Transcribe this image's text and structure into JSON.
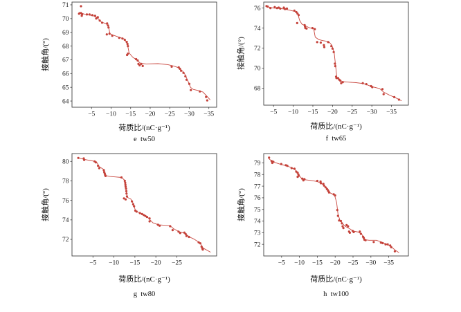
{
  "page": {
    "background": "#ffffff"
  },
  "style": {
    "point_color": "#c4423a",
    "line_color": "#c8463e",
    "axis_color": "#3f3f3f",
    "text_color": "#1c1c1c"
  },
  "chart_data": [
    {
      "id": "e-tw50",
      "type": "scatter",
      "caption": "e  tw50",
      "xlabel": "荷质比/(nC·g⁻¹)",
      "ylabel": "接触角/(°)",
      "xlim": [
        0,
        -37
      ],
      "ylim": [
        63.55,
        71.2
      ],
      "xticks": [
        -5,
        -10,
        -15,
        -20,
        -25,
        -30,
        -35
      ],
      "yticks": [
        64,
        65,
        66,
        67,
        68,
        69,
        70,
        71
      ],
      "points": [
        [
          -2.3,
          70.9
        ],
        [
          -1.8,
          70.35
        ],
        [
          -2.3,
          70.4
        ],
        [
          -2.6,
          70.3
        ],
        [
          -2.5,
          70.2
        ],
        [
          -3.8,
          70.3
        ],
        [
          -4.5,
          70.3
        ],
        [
          -5.2,
          70.25
        ],
        [
          -5.9,
          70.2
        ],
        [
          -6.2,
          70.0
        ],
        [
          -6.6,
          70.1
        ],
        [
          -7.1,
          69.85
        ],
        [
          -7.7,
          69.7
        ],
        [
          -9.0,
          69.65
        ],
        [
          -9.2,
          69.5
        ],
        [
          -9.35,
          69.35
        ],
        [
          -8.9,
          68.85
        ],
        [
          -9.6,
          68.9
        ],
        [
          -10.3,
          68.75
        ],
        [
          -12.1,
          68.6
        ],
        [
          -12.9,
          68.55
        ],
        [
          -13.5,
          68.45
        ],
        [
          -14.0,
          68.3
        ],
        [
          -14.2,
          68.15
        ],
        [
          -14.3,
          68.0
        ],
        [
          -14.1,
          67.35
        ],
        [
          -14.3,
          67.45
        ],
        [
          -16.4,
          67.05
        ],
        [
          -16.8,
          66.95
        ],
        [
          -17.0,
          66.7
        ],
        [
          -17.3,
          66.6
        ],
        [
          -17.7,
          66.7
        ],
        [
          -18.1,
          66.55
        ],
        [
          -25.5,
          66.5
        ],
        [
          -27.3,
          66.45
        ],
        [
          -27.6,
          66.35
        ],
        [
          -27.9,
          66.2
        ],
        [
          -28.5,
          66.05
        ],
        [
          -29.0,
          65.8
        ],
        [
          -29.3,
          65.55
        ],
        [
          -30.0,
          65.25
        ],
        [
          -30.4,
          64.8
        ],
        [
          -32.7,
          64.7
        ],
        [
          -34.3,
          64.3
        ],
        [
          -34.6,
          64.05
        ]
      ],
      "line": [
        [
          -1.8,
          70.45
        ],
        [
          -3.5,
          70.3
        ],
        [
          -5.5,
          70.2
        ],
        [
          -6.5,
          70.05
        ],
        [
          -7.5,
          69.75
        ],
        [
          -8.5,
          69.65
        ],
        [
          -9.3,
          69.5
        ],
        [
          -9.7,
          68.9
        ],
        [
          -10.5,
          68.8
        ],
        [
          -12.0,
          68.65
        ],
        [
          -13.5,
          68.5
        ],
        [
          -14.2,
          68.1
        ],
        [
          -14.6,
          67.5
        ],
        [
          -15.5,
          67.2
        ],
        [
          -16.5,
          67.0
        ],
        [
          -17.5,
          66.75
        ],
        [
          -19.0,
          66.7
        ],
        [
          -22.0,
          66.72
        ],
        [
          -24.5,
          66.65
        ],
        [
          -26.0,
          66.55
        ],
        [
          -27.5,
          66.4
        ],
        [
          -28.7,
          66.05
        ],
        [
          -29.6,
          65.5
        ],
        [
          -30.3,
          65.0
        ],
        [
          -31.0,
          64.85
        ],
        [
          -32.5,
          64.75
        ],
        [
          -33.5,
          64.65
        ],
        [
          -34.5,
          64.35
        ],
        [
          -35.3,
          64.1
        ]
      ]
    },
    {
      "id": "f-tw65",
      "type": "scatter",
      "caption": "f  tw65",
      "xlabel": "荷质比/(nC·g⁻¹)",
      "ylabel": "接触角/(°)",
      "xlim": [
        -2.5,
        -39.3
      ],
      "ylim": [
        66.3,
        76.6
      ],
      "xticks": [
        -5,
        -10,
        -15,
        -20,
        -25,
        -30,
        -35
      ],
      "yticks": [
        68,
        70,
        72,
        74,
        76
      ],
      "points": [
        [
          -3.2,
          76.2
        ],
        [
          -3.5,
          76.15
        ],
        [
          -4.2,
          76.0
        ],
        [
          -5.3,
          76.1
        ],
        [
          -5.9,
          76.0
        ],
        [
          -6.3,
          76.05
        ],
        [
          -6.7,
          75.95
        ],
        [
          -7.6,
          76.05
        ],
        [
          -7.9,
          75.9
        ],
        [
          -8.4,
          75.95
        ],
        [
          -10.3,
          75.75
        ],
        [
          -10.8,
          75.6
        ],
        [
          -11.1,
          75.45
        ],
        [
          -11.4,
          75.3
        ],
        [
          -11.0,
          74.5
        ],
        [
          -12.9,
          74.3
        ],
        [
          -13.0,
          74.15
        ],
        [
          -13.1,
          74.0
        ],
        [
          -13.4,
          73.95
        ],
        [
          -14.9,
          74.0
        ],
        [
          -15.5,
          73.9
        ],
        [
          -16.1,
          72.6
        ],
        [
          -17.0,
          72.55
        ],
        [
          -17.8,
          72.3
        ],
        [
          -17.9,
          72.1
        ],
        [
          -18.9,
          72.6
        ],
        [
          -19.7,
          72.2
        ],
        [
          -20.0,
          71.95
        ],
        [
          -20.3,
          71.6
        ],
        [
          -20.6,
          70.45
        ],
        [
          -20.7,
          70.2
        ],
        [
          -20.9,
          69.15
        ],
        [
          -21.0,
          69.0
        ],
        [
          -21.4,
          69.0
        ],
        [
          -21.7,
          68.85
        ],
        [
          -22.0,
          68.75
        ],
        [
          -22.2,
          68.5
        ],
        [
          -22.6,
          68.6
        ],
        [
          -27.7,
          68.5
        ],
        [
          -28.6,
          68.4
        ],
        [
          -29.8,
          68.2
        ],
        [
          -30.1,
          68.1
        ],
        [
          -32.7,
          67.9
        ],
        [
          -33.0,
          67.4
        ],
        [
          -35.7,
          67.1
        ],
        [
          -36.9,
          66.85
        ]
      ],
      "line": [
        [
          -3.2,
          76.15
        ],
        [
          -5.0,
          76.0
        ],
        [
          -7.0,
          75.95
        ],
        [
          -9.0,
          75.8
        ],
        [
          -10.5,
          75.65
        ],
        [
          -11.2,
          75.4
        ],
        [
          -11.6,
          74.8
        ],
        [
          -12.2,
          74.4
        ],
        [
          -13.0,
          74.25
        ],
        [
          -14.0,
          74.05
        ],
        [
          -15.2,
          73.95
        ],
        [
          -15.6,
          73.1
        ],
        [
          -16.5,
          72.85
        ],
        [
          -17.5,
          72.75
        ],
        [
          -19.0,
          72.65
        ],
        [
          -19.8,
          72.3
        ],
        [
          -20.4,
          71.6
        ],
        [
          -20.8,
          70.2
        ],
        [
          -21.1,
          69.1
        ],
        [
          -21.5,
          68.9
        ],
        [
          -22.5,
          68.65
        ],
        [
          -24.0,
          68.6
        ],
        [
          -26.0,
          68.55
        ],
        [
          -28.0,
          68.45
        ],
        [
          -30.0,
          68.15
        ],
        [
          -32.0,
          67.95
        ],
        [
          -33.0,
          67.6
        ],
        [
          -34.5,
          67.3
        ],
        [
          -36.0,
          67.05
        ],
        [
          -37.5,
          66.75
        ]
      ]
    },
    {
      "id": "g-tw80",
      "type": "scatter",
      "caption": "g  tw80",
      "xlabel": "荷质比/(nC·g⁻¹)",
      "ylabel": "接触角/(°)",
      "xlim": [
        0,
        -34.5
      ],
      "ylim": [
        70.3,
        80.8
      ],
      "xticks": [
        -5,
        -10,
        -15,
        -20,
        -25
      ],
      "yticks": [
        72,
        74,
        76,
        78,
        80
      ],
      "points": [
        [
          -1.5,
          80.35
        ],
        [
          -2.8,
          80.3
        ],
        [
          -2.9,
          80.15
        ],
        [
          -5.4,
          80.0
        ],
        [
          -5.7,
          79.9
        ],
        [
          -6.2,
          79.55
        ],
        [
          -6.5,
          79.3
        ],
        [
          -7.6,
          79.1
        ],
        [
          -7.7,
          78.9
        ],
        [
          -7.8,
          78.75
        ],
        [
          -7.9,
          78.6
        ],
        [
          -8.0,
          78.5
        ],
        [
          -11.8,
          78.35
        ],
        [
          -12.6,
          78.0
        ],
        [
          -12.7,
          77.8
        ],
        [
          -12.75,
          77.6
        ],
        [
          -12.8,
          77.4
        ],
        [
          -12.9,
          77.2
        ],
        [
          -12.95,
          76.95
        ],
        [
          -13.0,
          76.7
        ],
        [
          -13.1,
          76.4
        ],
        [
          -12.4,
          76.2
        ],
        [
          -12.8,
          76.1
        ],
        [
          -14.3,
          75.9
        ],
        [
          -14.6,
          75.6
        ],
        [
          -14.8,
          75.4
        ],
        [
          -15.1,
          74.95
        ],
        [
          -15.4,
          74.85
        ],
        [
          -16.2,
          74.7
        ],
        [
          -16.7,
          74.6
        ],
        [
          -17.1,
          74.5
        ],
        [
          -17.5,
          74.4
        ],
        [
          -17.9,
          74.3
        ],
        [
          -18.5,
          74.15
        ],
        [
          -18.5,
          73.85
        ],
        [
          -20.5,
          73.5
        ],
        [
          -20.9,
          73.4
        ],
        [
          -23.4,
          73.35
        ],
        [
          -24.0,
          72.95
        ],
        [
          -25.4,
          72.8
        ],
        [
          -25.8,
          72.65
        ],
        [
          -26.8,
          72.7
        ],
        [
          -27.1,
          72.55
        ],
        [
          -27.3,
          72.35
        ],
        [
          -27.9,
          72.25
        ],
        [
          -30.2,
          71.7
        ],
        [
          -30.6,
          71.6
        ],
        [
          -30.9,
          71.25
        ],
        [
          -31.1,
          71.05
        ],
        [
          -31.2,
          70.95
        ]
      ],
      "line": [
        [
          -1.5,
          80.35
        ],
        [
          -3.0,
          80.2
        ],
        [
          -5.5,
          80.0
        ],
        [
          -6.0,
          79.85
        ],
        [
          -6.5,
          79.45
        ],
        [
          -7.5,
          79.2
        ],
        [
          -8.0,
          78.55
        ],
        [
          -9.0,
          78.45
        ],
        [
          -10.5,
          78.4
        ],
        [
          -11.8,
          78.35
        ],
        [
          -12.5,
          78.1
        ],
        [
          -12.8,
          77.4
        ],
        [
          -13.0,
          76.7
        ],
        [
          -13.2,
          76.3
        ],
        [
          -14.0,
          76.15
        ],
        [
          -14.6,
          75.7
        ],
        [
          -15.1,
          75.0
        ],
        [
          -15.5,
          74.85
        ],
        [
          -17.0,
          74.55
        ],
        [
          -18.0,
          74.3
        ],
        [
          -18.6,
          74.0
        ],
        [
          -19.3,
          73.7
        ],
        [
          -20.6,
          73.5
        ],
        [
          -22.0,
          73.45
        ],
        [
          -23.4,
          73.4
        ],
        [
          -24.2,
          73.1
        ],
        [
          -25.5,
          72.8
        ],
        [
          -27.0,
          72.6
        ],
        [
          -28.0,
          72.25
        ],
        [
          -29.0,
          72.05
        ],
        [
          -30.5,
          71.65
        ],
        [
          -31.3,
          71.1
        ],
        [
          -33.0,
          70.7
        ]
      ]
    },
    {
      "id": "h-tw100",
      "type": "scatter",
      "caption": "h  tw100",
      "xlabel": "荷质比/(nC·g⁻¹)",
      "ylabel": "接触角/(°)",
      "xlim": [
        0,
        -40.5
      ],
      "ylim": [
        71.0,
        79.8
      ],
      "xticks": [
        -5,
        -10,
        -15,
        -20,
        -25,
        -30,
        -35
      ],
      "yticks": [
        72,
        73,
        74,
        75,
        76,
        77,
        78,
        79
      ],
      "points": [
        [
          -1.5,
          79.45
        ],
        [
          -2.2,
          79.15
        ],
        [
          -2.4,
          79.0
        ],
        [
          -2.7,
          79.1
        ],
        [
          -4.9,
          78.9
        ],
        [
          -6.2,
          78.8
        ],
        [
          -6.6,
          78.75
        ],
        [
          -7.8,
          78.55
        ],
        [
          -8.6,
          78.5
        ],
        [
          -9.1,
          78.25
        ],
        [
          -9.5,
          78.15
        ],
        [
          -9.7,
          78.0
        ],
        [
          -9.8,
          77.9
        ],
        [
          -9.5,
          77.8
        ],
        [
          -10.8,
          77.65
        ],
        [
          -11.1,
          77.5
        ],
        [
          -11.4,
          77.6
        ],
        [
          -15.0,
          77.45
        ],
        [
          -15.9,
          77.4
        ],
        [
          -16.0,
          77.25
        ],
        [
          -16.7,
          77.2
        ],
        [
          -16.9,
          77.05
        ],
        [
          -17.3,
          76.9
        ],
        [
          -17.7,
          76.75
        ],
        [
          -18.0,
          76.6
        ],
        [
          -18.3,
          76.45
        ],
        [
          -19.6,
          76.3
        ],
        [
          -20.0,
          76.2
        ],
        [
          -20.6,
          74.95
        ],
        [
          -20.8,
          74.45
        ],
        [
          -21.1,
          74.05
        ],
        [
          -21.6,
          74.0
        ],
        [
          -21.9,
          73.8
        ],
        [
          -22.1,
          73.55
        ],
        [
          -22.3,
          73.4
        ],
        [
          -23.2,
          73.65
        ],
        [
          -23.6,
          73.55
        ],
        [
          -23.9,
          73.1
        ],
        [
          -24.1,
          73.0
        ],
        [
          -24.9,
          73.15
        ],
        [
          -25.2,
          73.05
        ],
        [
          -26.9,
          73.1
        ],
        [
          -27.2,
          72.9
        ],
        [
          -27.8,
          72.65
        ],
        [
          -28.0,
          72.55
        ],
        [
          -28.2,
          72.4
        ],
        [
          -28.5,
          72.35
        ],
        [
          -30.8,
          72.2
        ],
        [
          -32.8,
          72.15
        ],
        [
          -33.3,
          72.1
        ],
        [
          -34.1,
          72.0
        ],
        [
          -34.7,
          72.0
        ],
        [
          -35.4,
          71.9
        ],
        [
          -35.7,
          71.75
        ],
        [
          -36.7,
          71.4
        ]
      ],
      "line": [
        [
          -1.5,
          79.35
        ],
        [
          -2.5,
          79.1
        ],
        [
          -4.0,
          78.95
        ],
        [
          -5.0,
          78.85
        ],
        [
          -6.5,
          78.75
        ],
        [
          -8.0,
          78.55
        ],
        [
          -9.0,
          78.35
        ],
        [
          -9.8,
          77.95
        ],
        [
          -10.5,
          77.7
        ],
        [
          -11.5,
          77.55
        ],
        [
          -13.0,
          77.5
        ],
        [
          -15.0,
          77.4
        ],
        [
          -16.0,
          77.25
        ],
        [
          -17.0,
          77.05
        ],
        [
          -18.0,
          76.75
        ],
        [
          -18.7,
          76.4
        ],
        [
          -19.8,
          76.25
        ],
        [
          -20.4,
          75.6
        ],
        [
          -20.8,
          74.6
        ],
        [
          -21.3,
          74.1
        ],
        [
          -22.0,
          73.8
        ],
        [
          -22.8,
          73.55
        ],
        [
          -24.0,
          73.35
        ],
        [
          -25.0,
          73.15
        ],
        [
          -26.5,
          73.05
        ],
        [
          -27.5,
          72.85
        ],
        [
          -28.3,
          72.4
        ],
        [
          -29.5,
          72.35
        ],
        [
          -31.5,
          72.35
        ],
        [
          -33.0,
          72.2
        ],
        [
          -34.5,
          72.0
        ],
        [
          -35.5,
          71.85
        ],
        [
          -36.8,
          71.5
        ],
        [
          -37.8,
          71.3
        ]
      ]
    }
  ]
}
